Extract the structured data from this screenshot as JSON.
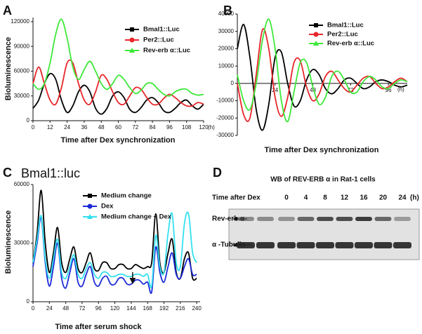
{
  "chart_data": [
    {
      "type": "line",
      "label": "A",
      "xlabel": "Time after Dex synchronization",
      "ylabel": "Bioluminescence",
      "x_unit": "(h)",
      "legend": "upper right",
      "x": [
        0,
        4,
        8,
        12,
        16,
        20,
        24,
        28,
        32,
        36,
        40,
        44,
        48,
        52,
        56,
        60,
        64,
        68,
        72,
        76,
        80,
        84,
        88,
        92,
        96,
        100,
        104,
        108,
        112,
        116,
        120
      ],
      "xlim": [
        0,
        120
      ],
      "xticks": [
        0,
        12,
        24,
        36,
        48,
        60,
        72,
        84,
        96,
        108,
        120
      ],
      "ylim": [
        0,
        125000
      ],
      "yticks": [
        0,
        30000,
        60000,
        90000,
        120000
      ],
      "series": [
        {
          "name": "Bmal1::Luc",
          "color": "#000000",
          "values": [
            15000,
            25000,
            45000,
            57000,
            50000,
            25000,
            10000,
            18000,
            35000,
            43000,
            35000,
            15000,
            8000,
            15000,
            30000,
            35000,
            28000,
            14000,
            10000,
            16000,
            25000,
            28000,
            22000,
            12000,
            10000,
            15000,
            22000,
            25000,
            18000,
            14000,
            20000
          ]
        },
        {
          "name": "Per2::Luc",
          "color": "#e8262a",
          "values": [
            45000,
            65000,
            45000,
            25000,
            20000,
            40000,
            70000,
            70000,
            45000,
            25000,
            20000,
            35000,
            55000,
            50000,
            35000,
            22000,
            20000,
            30000,
            40000,
            38000,
            28000,
            20000,
            20000,
            27000,
            32000,
            28000,
            22000,
            18000,
            18000,
            22000,
            20000
          ]
        },
        {
          "name": "Rev-erb α::Luc",
          "color": "#3ee83a",
          "values": [
            45000,
            38000,
            45000,
            70000,
            105000,
            123000,
            100000,
            65000,
            50000,
            62000,
            72000,
            60000,
            45000,
            38000,
            45000,
            55000,
            50000,
            40000,
            33000,
            37000,
            45000,
            45000,
            38000,
            32000,
            30000,
            35000,
            38000,
            38000,
            33000,
            31000,
            32000
          ]
        }
      ]
    },
    {
      "type": "line",
      "label": "B",
      "xlabel": "Time after Dex synchronization",
      "x_unit": "(h)",
      "legend": "upper right",
      "x": [
        0,
        4,
        8,
        12,
        16,
        20,
        24,
        28,
        32,
        36,
        40,
        44,
        48,
        52,
        56,
        60,
        64,
        68,
        72,
        76,
        80,
        84,
        88,
        92,
        96,
        100,
        104,
        108
      ],
      "xlim": [
        0,
        108
      ],
      "xticks": [
        24,
        48,
        72,
        96
      ],
      "ylim": [
        -30000,
        40000
      ],
      "yticks": [
        -30000,
        -20000,
        -10000,
        0,
        10000,
        20000,
        30000,
        40000
      ],
      "series": [
        {
          "name": "Bmal1::Luc",
          "color": "#000000",
          "values": [
            20000,
            34000,
            15000,
            -15000,
            -27000,
            -12000,
            15000,
            18000,
            0,
            -13000,
            -10000,
            2000,
            8000,
            5000,
            -3000,
            -6000,
            -3000,
            2000,
            3000,
            0,
            -3000,
            -2000,
            1000,
            2000,
            1000,
            -1000,
            -2000,
            -1000
          ]
        },
        {
          "name": "Per2::Luc",
          "color": "#e8262a",
          "values": [
            0,
            -18000,
            -20000,
            5000,
            31000,
            20000,
            -8000,
            -19000,
            -8000,
            12000,
            13000,
            -2000,
            -10000,
            -6000,
            4000,
            7000,
            2000,
            -3000,
            -5000,
            -1000,
            3000,
            4000,
            0,
            -3000,
            -2000,
            1000,
            3000,
            1000
          ]
        },
        {
          "name": "Rev-erb α::Luc",
          "color": "#3ee83a",
          "values": [
            5000,
            -10000,
            -15000,
            0,
            25000,
            37000,
            20000,
            -10000,
            -22000,
            -5000,
            12000,
            12000,
            -2000,
            -12000,
            -8000,
            4000,
            7000,
            2000,
            -5000,
            -5000,
            1000,
            4000,
            2000,
            -2000,
            -3000,
            0,
            2000,
            1000
          ]
        }
      ]
    },
    {
      "type": "line",
      "label": "C",
      "title": "Bmal1::luc",
      "xlabel": "Time after serum shock",
      "ylabel": "Bioluminescence",
      "legend": "upper left",
      "x": [
        0,
        6,
        12,
        18,
        24,
        30,
        36,
        42,
        48,
        54,
        60,
        66,
        72,
        78,
        84,
        90,
        96,
        102,
        108,
        114,
        120,
        126,
        132,
        138,
        144,
        150,
        156,
        162,
        168,
        174,
        180,
        186,
        192,
        198,
        204,
        210,
        216,
        222,
        228,
        234,
        240
      ],
      "xlim": [
        0,
        245
      ],
      "xticks": [
        0,
        24,
        48,
        72,
        96,
        120,
        144,
        168,
        192,
        216,
        240
      ],
      "ylim": [
        0,
        60000
      ],
      "yticks": [
        0,
        30000,
        60000
      ],
      "series": [
        {
          "name": "Medium change",
          "color": "#000000",
          "values": [
            20000,
            35000,
            57000,
            30000,
            15000,
            25000,
            38000,
            20000,
            15000,
            22000,
            28000,
            17000,
            15000,
            20000,
            25000,
            17000,
            16000,
            20000,
            20000,
            17000,
            17000,
            19000,
            19000,
            17000,
            17000,
            19000,
            18000,
            17000,
            18000,
            20000,
            45000,
            20000,
            15000,
            25000,
            32000,
            15000,
            12000,
            22000,
            25000,
            12000,
            12000
          ]
        },
        {
          "name": "Dex",
          "color": "#1c2bd6",
          "values": [
            18000,
            30000,
            43000,
            20000,
            8000,
            18000,
            30000,
            12000,
            7000,
            15000,
            22000,
            10000,
            8000,
            14000,
            18000,
            10000,
            8000,
            12000,
            13000,
            9000,
            9000,
            12000,
            12000,
            9000,
            9000,
            11000,
            11000,
            9000,
            10000,
            5000,
            28000,
            15000,
            10000,
            18000,
            25000,
            14000,
            12000,
            18000,
            22000,
            14000,
            14000
          ]
        },
        {
          "name": "Medium change + Dex",
          "color": "#33e0f0",
          "values": [
            20000,
            32000,
            44000,
            22000,
            12000,
            22000,
            32000,
            15000,
            12000,
            18000,
            24000,
            14000,
            12000,
            17000,
            20000,
            14000,
            12000,
            15000,
            15000,
            13000,
            13000,
            14000,
            14000,
            13000,
            13000,
            14000,
            14000,
            13000,
            14000,
            8000,
            34000,
            18000,
            15000,
            35000,
            45000,
            20000,
            18000,
            40000,
            45000,
            25000,
            20000
          ]
        }
      ]
    }
  ],
  "blot": {
    "label": "D",
    "title": "WB of REV-ERB α in Rat-1 cells",
    "time_label": "Time after Dex",
    "times": [
      0,
      4,
      8,
      12,
      16,
      20,
      24
    ],
    "unit": "(h)",
    "rows": [
      "Rev-erb α",
      "α -Tubulin"
    ]
  }
}
